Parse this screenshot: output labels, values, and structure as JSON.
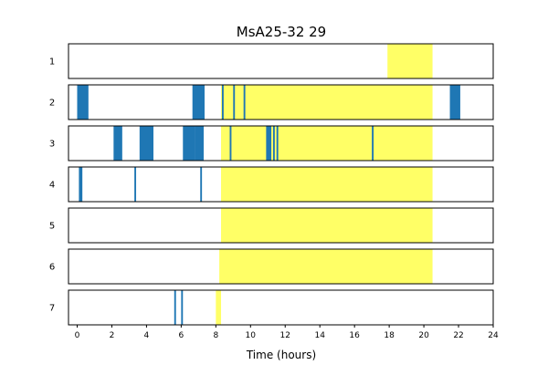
{
  "chart_data": {
    "type": "bar",
    "title": "MsA25-32 29",
    "xlabel": "Time (hours)",
    "ylabel": "",
    "xlim": [
      -0.5,
      24
    ],
    "x_ticks": [
      0,
      2,
      4,
      6,
      8,
      10,
      12,
      14,
      16,
      18,
      20,
      22,
      24
    ],
    "grid": false,
    "colors": {
      "event": "#1f77b4",
      "highlight": "#ffff66"
    },
    "rows": [
      {
        "label": "1",
        "highlight": [
          [
            17.9,
            20.5
          ]
        ],
        "events": []
      },
      {
        "label": "2",
        "highlight": [
          [
            8.3,
            20.5
          ]
        ],
        "events": [
          [
            0,
            0.65
          ],
          [
            6.65,
            7.35
          ],
          [
            8.35,
            8.45
          ],
          [
            9.0,
            9.1
          ],
          [
            9.6,
            9.7
          ],
          [
            21.5,
            22.1
          ]
        ]
      },
      {
        "label": "3",
        "highlight": [
          [
            8.3,
            20.5
          ]
        ],
        "events": [
          [
            2.1,
            2.6
          ],
          [
            3.6,
            4.4
          ],
          [
            6.1,
            6.8
          ],
          [
            6.8,
            7.3
          ],
          [
            8.8,
            8.9
          ],
          [
            10.9,
            11.2
          ],
          [
            11.3,
            11.4
          ],
          [
            11.5,
            11.6
          ],
          [
            17.0,
            17.1
          ]
        ]
      },
      {
        "label": "4",
        "highlight": [
          [
            8.3,
            20.5
          ]
        ],
        "events": [
          [
            0.1,
            0.3
          ],
          [
            3.3,
            3.4
          ],
          [
            7.1,
            7.2
          ]
        ]
      },
      {
        "label": "5",
        "highlight": [
          [
            8.3,
            20.5
          ]
        ],
        "events": []
      },
      {
        "label": "6",
        "highlight": [
          [
            8.2,
            20.5
          ]
        ],
        "events": []
      },
      {
        "label": "7",
        "highlight": [
          [
            8.0,
            8.3
          ]
        ],
        "events": [
          [
            5.6,
            5.7
          ],
          [
            6.0,
            6.1
          ]
        ]
      }
    ]
  }
}
